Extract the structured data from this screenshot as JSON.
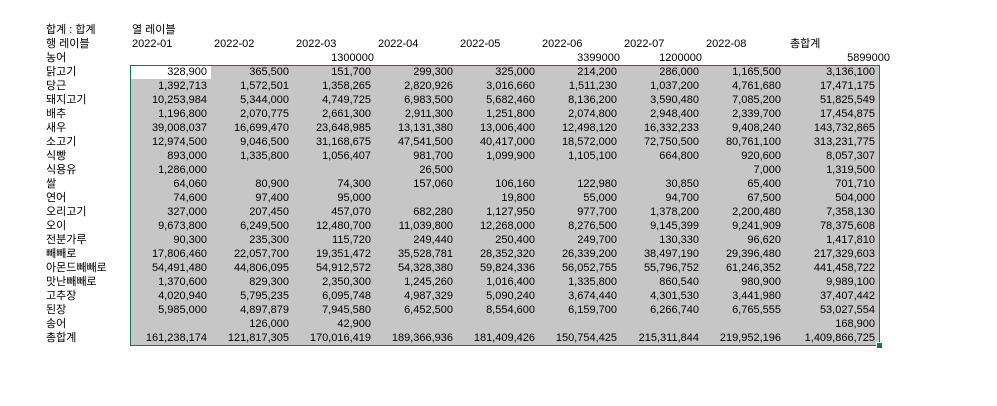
{
  "pivot": {
    "corner": "합계 : 합계",
    "column_label": "열 레이블",
    "row_label": "행 레이블",
    "columns": [
      "2022-01",
      "2022-02",
      "2022-03",
      "2022-04",
      "2022-05",
      "2022-06",
      "2022-07",
      "2022-08",
      "총합계"
    ],
    "rows": [
      {
        "label": "농어",
        "cells": [
          null,
          null,
          "1300000",
          null,
          null,
          "3399000",
          "1200000",
          null,
          "5899000"
        ]
      },
      {
        "label": "닭고기",
        "cells": [
          "328,900",
          "365,500",
          "151,700",
          "299,300",
          "325,000",
          "214,200",
          "286,000",
          "1,165,500",
          "3,136,100"
        ]
      },
      {
        "label": "당근",
        "cells": [
          "1,392,713",
          "1,572,501",
          "1,358,265",
          "2,820,926",
          "3,016,660",
          "1,511,230",
          "1,037,200",
          "4,761,680",
          "17,471,175"
        ]
      },
      {
        "label": "돼지고기",
        "cells": [
          "10,253,984",
          "5,344,000",
          "4,749,725",
          "6,983,500",
          "5,682,460",
          "8,136,200",
          "3,590,480",
          "7,085,200",
          "51,825,549"
        ]
      },
      {
        "label": "배추",
        "cells": [
          "1,196,800",
          "2,070,775",
          "2,661,300",
          "2,911,300",
          "1,251,800",
          "2,074,800",
          "2,948,400",
          "2,339,700",
          "17,454,875"
        ]
      },
      {
        "label": "새우",
        "cells": [
          "39,008,037",
          "16,699,470",
          "23,648,985",
          "13,131,380",
          "13,006,400",
          "12,498,120",
          "16,332,233",
          "9,408,240",
          "143,732,865"
        ]
      },
      {
        "label": "소고기",
        "cells": [
          "12,974,500",
          "9,046,500",
          "31,168,675",
          "47,541,500",
          "40,417,000",
          "18,572,000",
          "72,750,500",
          "80,761,100",
          "313,231,775"
        ]
      },
      {
        "label": "식빵",
        "cells": [
          "893,000",
          "1,335,800",
          "1,056,407",
          "981,700",
          "1,099,900",
          "1,105,100",
          "664,800",
          "920,600",
          "8,057,307"
        ]
      },
      {
        "label": "식용유",
        "cells": [
          "1,286,000",
          null,
          null,
          "26,500",
          null,
          null,
          null,
          "7,000",
          "1,319,500"
        ]
      },
      {
        "label": "쌀",
        "cells": [
          "64,060",
          "80,900",
          "74,300",
          "157,060",
          "106,160",
          "122,980",
          "30,850",
          "65,400",
          "701,710"
        ]
      },
      {
        "label": "연어",
        "cells": [
          "74,600",
          "97,400",
          "95,000",
          null,
          "19,800",
          "55,000",
          "94,700",
          "67,500",
          "504,000"
        ]
      },
      {
        "label": "오리고기",
        "cells": [
          "327,000",
          "207,450",
          "457,070",
          "682,280",
          "1,127,950",
          "977,700",
          "1,378,200",
          "2,200,480",
          "7,358,130"
        ]
      },
      {
        "label": "오이",
        "cells": [
          "9,673,800",
          "6,249,500",
          "12,480,700",
          "11,039,800",
          "12,268,000",
          "8,276,500",
          "9,145,399",
          "9,241,909",
          "78,375,608"
        ]
      },
      {
        "label": "전분가루",
        "cells": [
          "90,300",
          "235,300",
          "115,720",
          "249,440",
          "250,400",
          "249,700",
          "130,330",
          "96,620",
          "1,417,810"
        ]
      },
      {
        "label": "빼빼로",
        "cells": [
          "17,806,460",
          "22,057,700",
          "19,351,472",
          "35,528,781",
          "28,352,320",
          "26,339,200",
          "38,497,190",
          "29,396,480",
          "217,329,603"
        ]
      },
      {
        "label": "아몬드빼빼로",
        "cells": [
          "54,491,480",
          "44,806,095",
          "54,912,572",
          "54,328,380",
          "59,824,336",
          "56,052,755",
          "55,796,752",
          "61,246,352",
          "441,458,722"
        ]
      },
      {
        "label": "맛난빼빼로",
        "cells": [
          "1,370,600",
          "829,300",
          "2,350,300",
          "1,245,260",
          "1,016,400",
          "1,335,800",
          "860,540",
          "980,900",
          "9,989,100"
        ]
      },
      {
        "label": "고추장",
        "cells": [
          "4,020,940",
          "5,795,235",
          "6,095,748",
          "4,987,329",
          "5,090,240",
          "3,674,440",
          "4,301,530",
          "3,441,980",
          "37,407,442"
        ]
      },
      {
        "label": "된장",
        "cells": [
          "5,985,000",
          "4,897,879",
          "7,945,580",
          "6,452,500",
          "8,554,600",
          "6,159,700",
          "6,266,740",
          "6,765,555",
          "53,027,554"
        ]
      },
      {
        "label": "송어",
        "cells": [
          null,
          "126,000",
          "42,900",
          null,
          null,
          null,
          null,
          null,
          "168,900"
        ]
      },
      {
        "label": "총합계",
        "cells": [
          "161,238,174",
          "121,817,305",
          "170,016,419",
          "189,366,936",
          "181,409,426",
          "150,754,425",
          "215,311,844",
          "219,952,196",
          "1,409,866,725"
        ]
      }
    ]
  }
}
